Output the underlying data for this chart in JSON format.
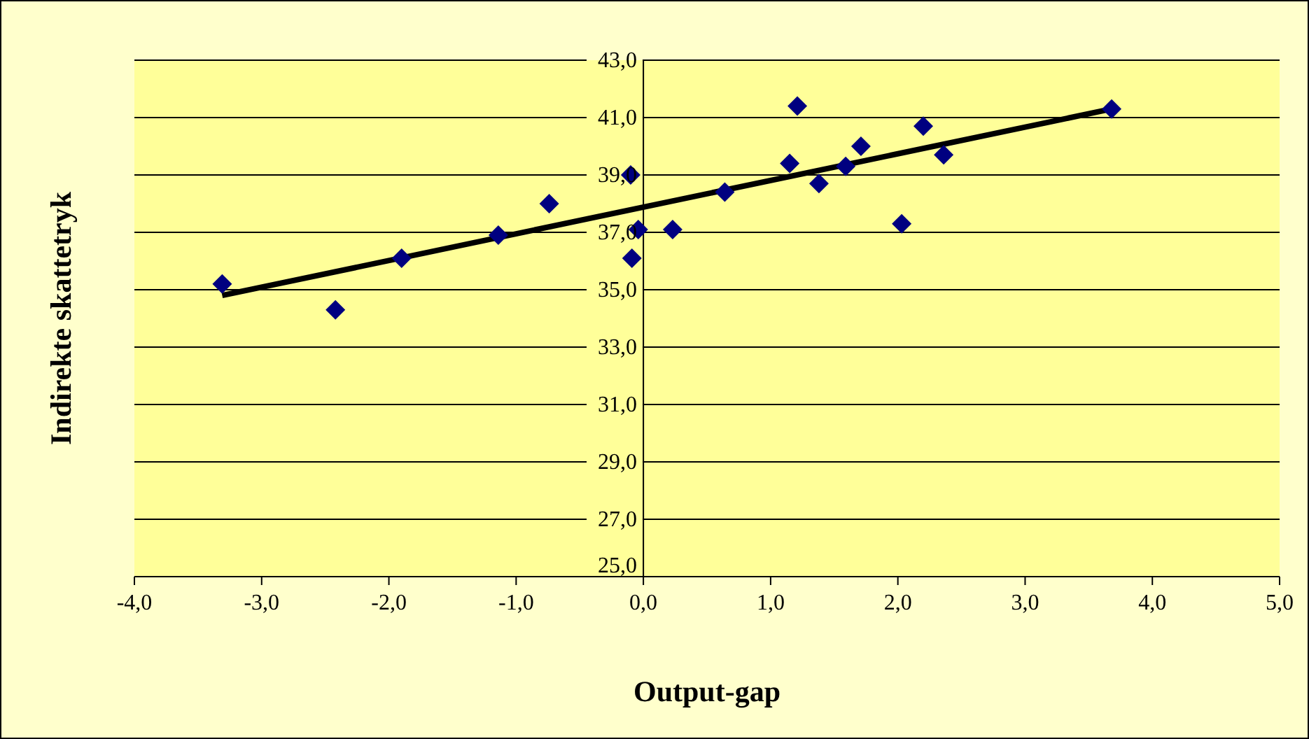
{
  "chart_data": {
    "type": "scatter",
    "xlabel": "Output-gap",
    "ylabel": "Indirekte skattetryk",
    "x": [
      -3.31,
      -2.42,
      -1.9,
      -1.14,
      -0.74,
      -0.1,
      -0.04,
      -0.09,
      0.23,
      0.64,
      1.15,
      1.21,
      1.38,
      1.59,
      1.71,
      2.03,
      2.2,
      2.36,
      3.68
    ],
    "series": [
      {
        "color": "#000080",
        "marker": "diamond",
        "values": [
          35.2,
          34.3,
          36.1,
          36.9,
          38.0,
          39.0,
          37.1,
          36.1,
          37.1,
          38.4,
          39.4,
          41.4,
          38.7,
          39.3,
          40.0,
          37.3,
          40.7,
          39.7,
          41.3
        ]
      },
      {
        "type": "line",
        "marker": "none",
        "color": "#000000",
        "x": [
          -3.31,
          3.68
        ],
        "values": [
          34.8,
          41.3
        ]
      }
    ],
    "xlim": [
      -4,
      5
    ],
    "ylim": [
      25,
      43
    ],
    "xticks": [
      {
        "value": -4,
        "label": "-4,0"
      },
      {
        "value": -3,
        "label": "-3,0"
      },
      {
        "value": -2,
        "label": "-2,0"
      },
      {
        "value": -1,
        "label": "-1,0"
      },
      {
        "value": 0,
        "label": "0,0"
      },
      {
        "value": 1,
        "label": "1,0"
      },
      {
        "value": 2,
        "label": "2,0"
      },
      {
        "value": 3,
        "label": "3,0"
      },
      {
        "value": 4,
        "label": "4,0"
      },
      {
        "value": 5,
        "label": "5,0"
      }
    ],
    "yticks": [
      {
        "value": 25,
        "label": "25,0"
      },
      {
        "value": 27,
        "label": "27,0"
      },
      {
        "value": 29,
        "label": "29,0"
      },
      {
        "value": 31,
        "label": "31,0"
      },
      {
        "value": 33,
        "label": "33,0"
      },
      {
        "value": 35,
        "label": "35,0"
      },
      {
        "value": 37,
        "label": "37,0"
      },
      {
        "value": 39,
        "label": "39,0"
      },
      {
        "value": 41,
        "label": "41,0"
      },
      {
        "value": 43,
        "label": "43,0"
      }
    ],
    "grid": "y",
    "legend": false,
    "line_style": "solid"
  }
}
